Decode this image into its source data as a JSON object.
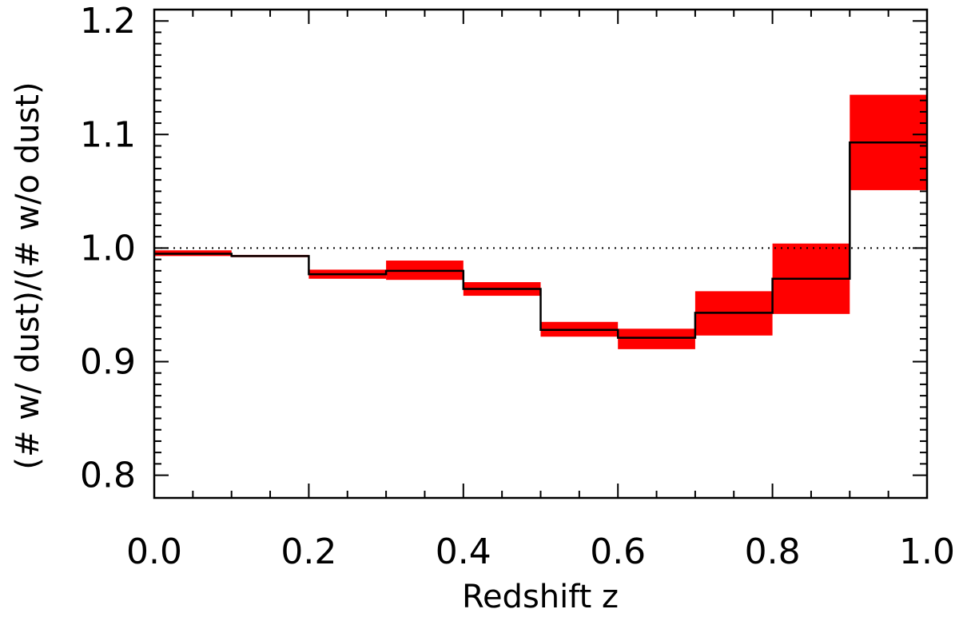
{
  "chart_data": {
    "type": "line",
    "title": "",
    "xlabel": "Redshift z",
    "ylabel": "(# w/ dust)/(# w/o dust)",
    "xlim": [
      0.0,
      1.0
    ],
    "ylim": [
      0.78,
      1.21
    ],
    "x_ticks": [
      0.0,
      0.2,
      0.4,
      0.6,
      0.8,
      1.0
    ],
    "x_tick_labels": [
      "0.0",
      "0.2",
      "0.4",
      "0.6",
      "0.8",
      "1.0"
    ],
    "y_ticks": [
      0.8,
      0.9,
      1.0,
      1.1,
      1.2
    ],
    "y_tick_labels": [
      "0.8",
      "0.9",
      "1.0",
      "1.1",
      "1.2"
    ],
    "reference_line": {
      "y": 1.0,
      "style": "dotted"
    },
    "bins": [
      {
        "x0": 0.0,
        "x1": 0.1,
        "value": 0.995,
        "low": 0.993,
        "high": 0.998
      },
      {
        "x0": 0.1,
        "x1": 0.2,
        "value": 0.993,
        "low": 0.992,
        "high": 0.994
      },
      {
        "x0": 0.2,
        "x1": 0.3,
        "value": 0.977,
        "low": 0.973,
        "high": 0.981
      },
      {
        "x0": 0.3,
        "x1": 0.4,
        "value": 0.98,
        "low": 0.972,
        "high": 0.989
      },
      {
        "x0": 0.4,
        "x1": 0.5,
        "value": 0.964,
        "low": 0.958,
        "high": 0.97
      },
      {
        "x0": 0.5,
        "x1": 0.6,
        "value": 0.928,
        "low": 0.922,
        "high": 0.935
      },
      {
        "x0": 0.6,
        "x1": 0.7,
        "value": 0.921,
        "low": 0.911,
        "high": 0.929
      },
      {
        "x0": 0.7,
        "x1": 0.8,
        "value": 0.943,
        "low": 0.923,
        "high": 0.962
      },
      {
        "x0": 0.8,
        "x1": 0.9,
        "value": 0.973,
        "low": 0.942,
        "high": 1.004
      },
      {
        "x0": 0.9,
        "x1": 1.0,
        "value": 1.093,
        "low": 1.051,
        "high": 1.135
      }
    ],
    "grid": false,
    "legend": "none",
    "colors": {
      "band": "#ff0000",
      "line": "#000000",
      "axes": "#000000"
    }
  }
}
